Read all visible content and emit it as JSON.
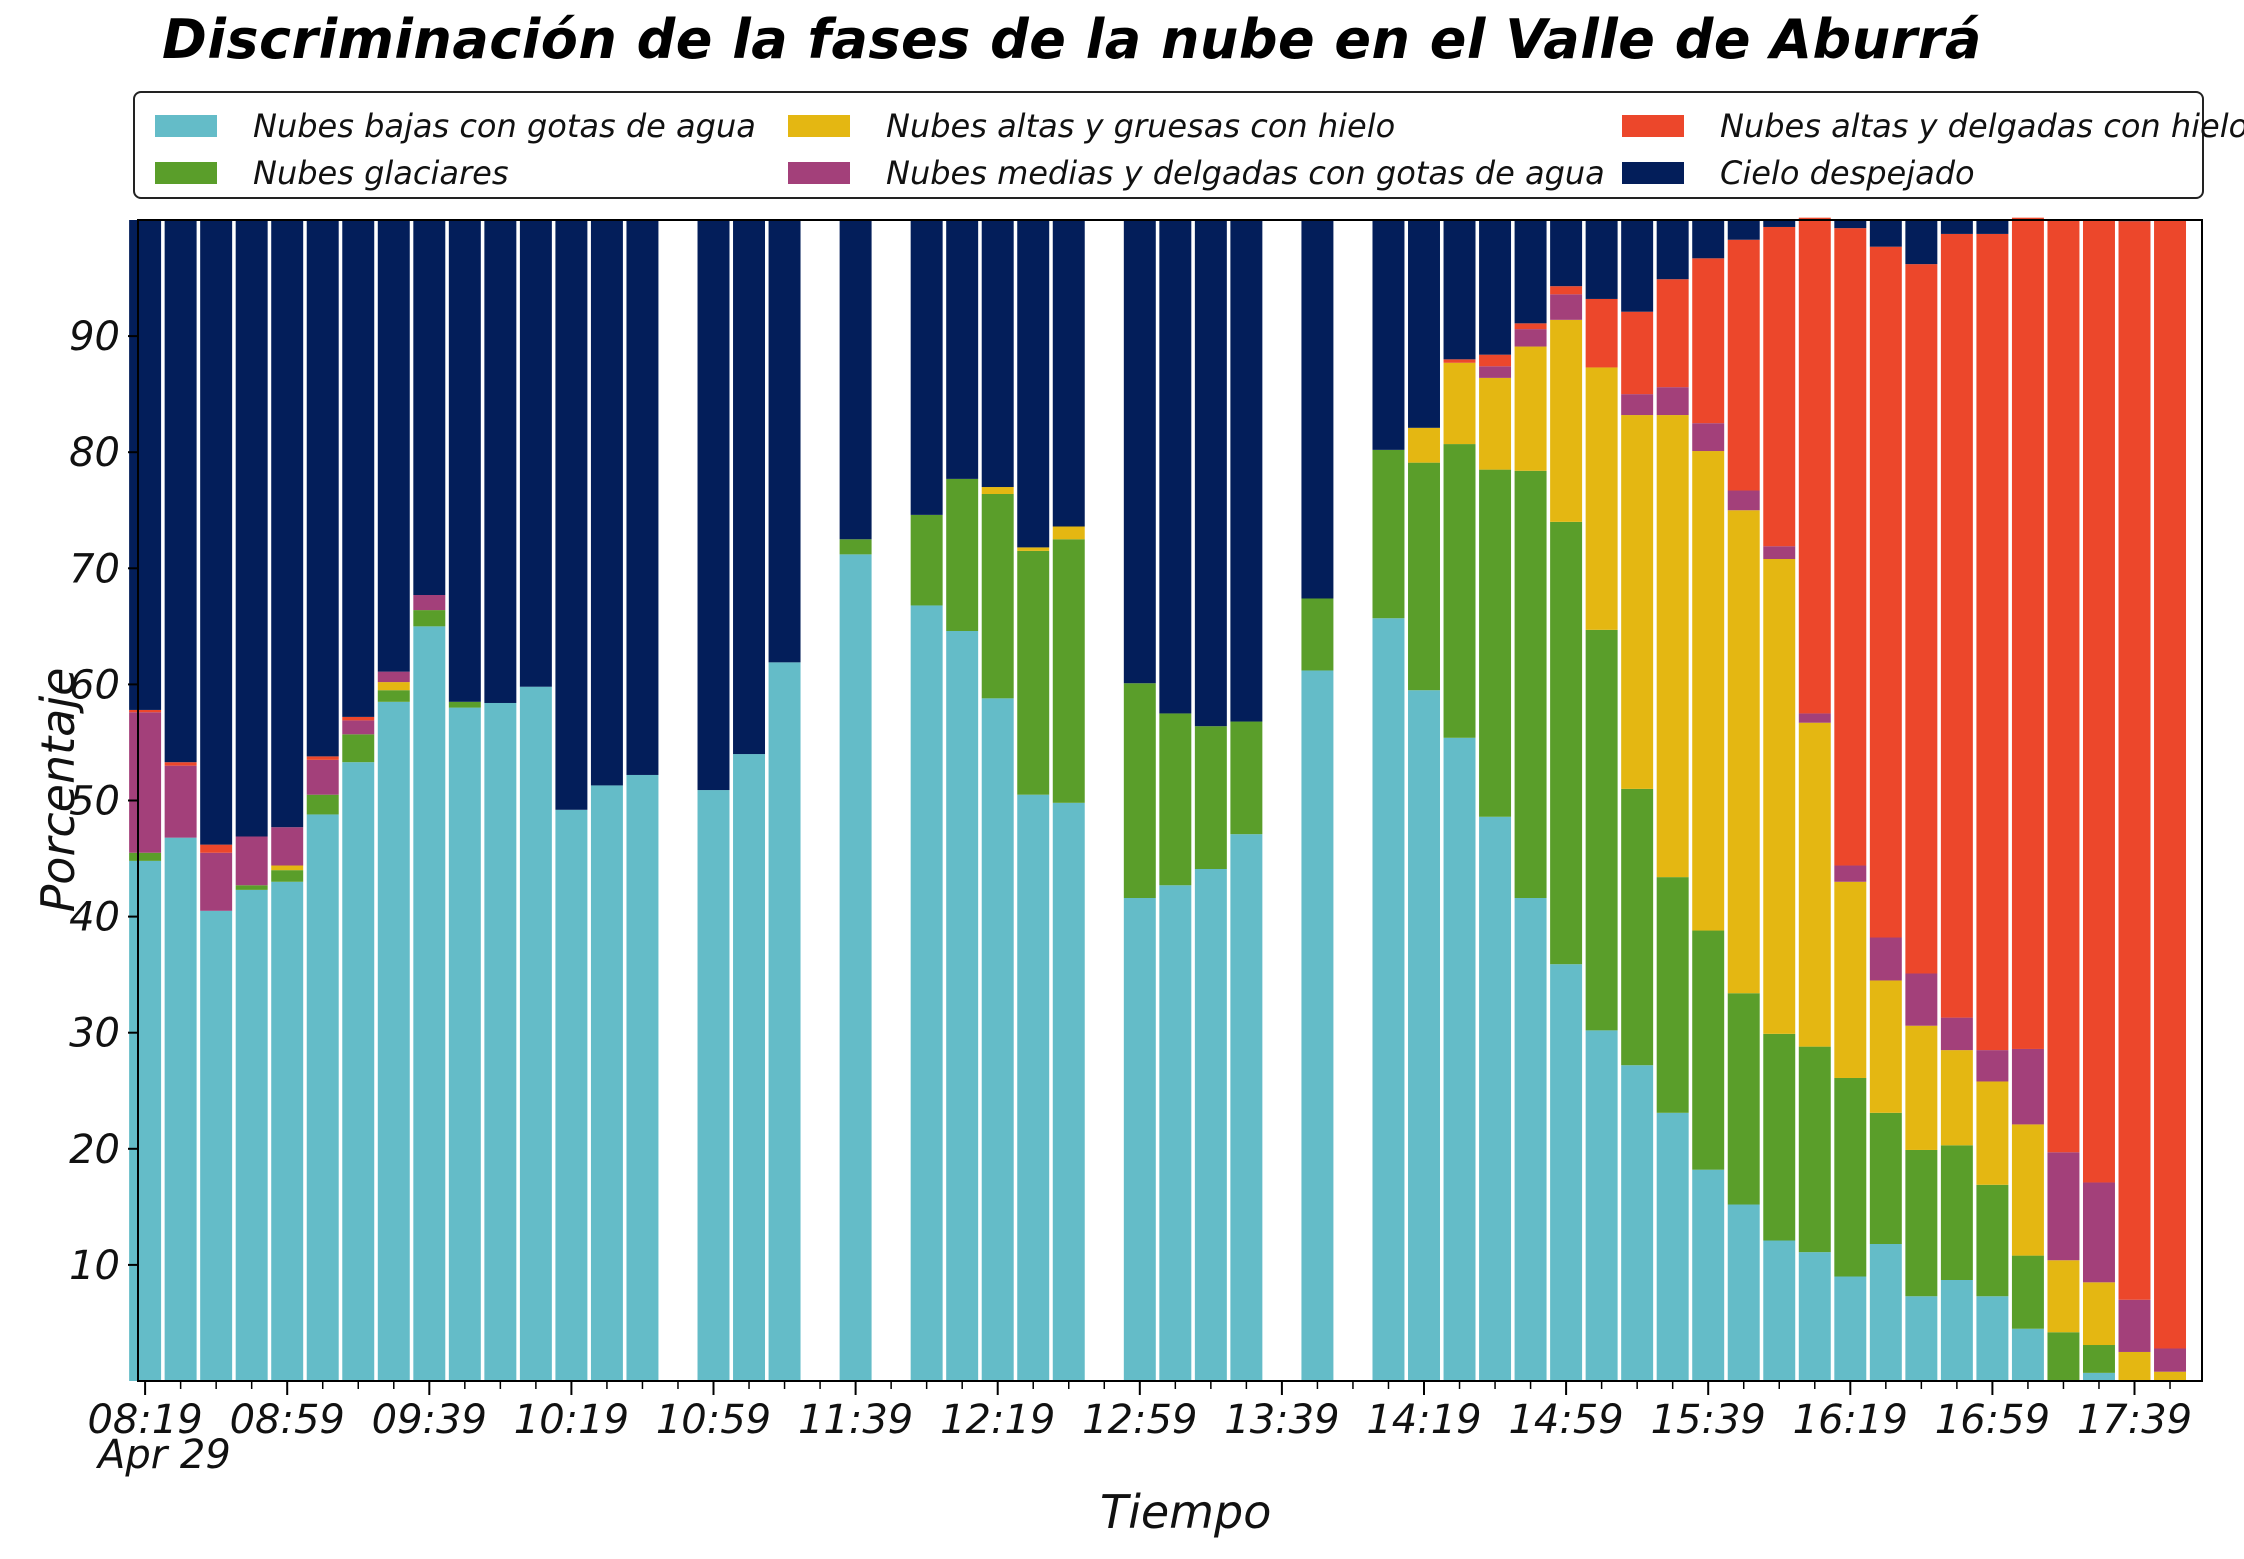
{
  "chart_data": {
    "type": "bar",
    "stacked": true,
    "title": "Discriminación de la fases de la nube en el Valle de Aburrá",
    "xlabel": "Tiempo",
    "ylabel": "Porcentaje",
    "date_label": "Apr 29",
    "ylim": [
      0,
      100
    ],
    "yticks": [
      10,
      20,
      30,
      40,
      50,
      60,
      70,
      80,
      90
    ],
    "xlim_minutes": [
      497,
      1078
    ],
    "xtick_minutes": [
      499,
      539,
      579,
      619,
      659,
      699,
      739,
      779,
      819,
      859,
      899,
      939,
      979,
      1019,
      1059
    ],
    "xtick_labels": [
      "08:19",
      "08:59",
      "09:39",
      "10:19",
      "10:59",
      "11:39",
      "12:19",
      "12:59",
      "13:39",
      "14:19",
      "14:59",
      "15:39",
      "16:19",
      "16:59",
      "17:39"
    ],
    "legend_position": "top",
    "colors": {
      "bajas": "#64bcc8",
      "glaciares": "#5a9e2a",
      "altas_gruesas": "#e4b712",
      "medias": "#a3407a",
      "altas_delgadas": "#ec472b",
      "despejado": "#031e5a"
    },
    "legend": [
      {
        "key": "bajas",
        "label": "Nubes bajas con gotas de agua"
      },
      {
        "key": "altas_gruesas",
        "label": "Nubes altas y gruesas con hielo"
      },
      {
        "key": "altas_delgadas",
        "label": "Nubes altas y delgadas con hielo"
      },
      {
        "key": "glaciares",
        "label": "Nubes glaciares"
      },
      {
        "key": "medias",
        "label": "Nubes medias y delgadas con gotas de agua"
      },
      {
        "key": "despejado",
        "label": "Cielo despejado"
      }
    ],
    "series_order": [
      "bajas",
      "glaciares",
      "altas_gruesas",
      "medias",
      "altas_delgadas",
      "despejado"
    ],
    "bars": [
      {
        "time": "08:19",
        "bajas": 44.8,
        "glaciares": 0.7,
        "altas_gruesas": 0,
        "medias": 12.1,
        "altas_delgadas": 0.2
      },
      {
        "time": "08:29",
        "bajas": 46.8,
        "glaciares": 0,
        "altas_gruesas": 0,
        "medias": 6.2,
        "altas_delgadas": 0.3
      },
      {
        "time": "08:39",
        "bajas": 40.5,
        "glaciares": 0,
        "altas_gruesas": 0,
        "medias": 5.0,
        "altas_delgadas": 0.7
      },
      {
        "time": "08:49",
        "bajas": 42.3,
        "glaciares": 0.4,
        "altas_gruesas": 0,
        "medias": 4.2,
        "altas_delgadas": 0
      },
      {
        "time": "08:59",
        "bajas": 43.0,
        "glaciares": 1.0,
        "altas_gruesas": 0.4,
        "medias": 3.3,
        "altas_delgadas": 0
      },
      {
        "time": "09:09",
        "bajas": 48.8,
        "glaciares": 1.7,
        "altas_gruesas": 0,
        "medias": 3.0,
        "altas_delgadas": 0.3
      },
      {
        "time": "09:19",
        "bajas": 53.3,
        "glaciares": 2.4,
        "altas_gruesas": 0,
        "medias": 1.2,
        "altas_delgadas": 0.3
      },
      {
        "time": "09:29",
        "bajas": 58.5,
        "glaciares": 1.0,
        "altas_gruesas": 0.7,
        "medias": 0.9,
        "altas_delgadas": 0
      },
      {
        "time": "09:39",
        "bajas": 65.0,
        "glaciares": 1.4,
        "altas_gruesas": 0,
        "medias": 1.3,
        "altas_delgadas": 0
      },
      {
        "time": "09:49",
        "bajas": 58.0,
        "glaciares": 0.5,
        "altas_gruesas": 0,
        "medias": 0,
        "altas_delgadas": 0
      },
      {
        "time": "09:59",
        "bajas": 58.4,
        "glaciares": 0,
        "altas_gruesas": 0,
        "medias": 0,
        "altas_delgadas": 0
      },
      {
        "time": "10:09",
        "bajas": 59.8,
        "glaciares": 0,
        "altas_gruesas": 0,
        "medias": 0,
        "altas_delgadas": 0
      },
      {
        "time": "10:19",
        "bajas": 49.2,
        "glaciares": 0,
        "altas_gruesas": 0,
        "medias": 0,
        "altas_delgadas": 0
      },
      {
        "time": "10:29",
        "bajas": 51.3,
        "glaciares": 0,
        "altas_gruesas": 0,
        "medias": 0,
        "altas_delgadas": 0
      },
      {
        "time": "10:39",
        "bajas": 52.2,
        "glaciares": 0,
        "altas_gruesas": 0,
        "medias": 0,
        "altas_delgadas": 0
      },
      {
        "time": "10:59",
        "bajas": 50.9,
        "glaciares": 0,
        "altas_gruesas": 0,
        "medias": 0,
        "altas_delgadas": 0
      },
      {
        "time": "11:09",
        "bajas": 54.0,
        "glaciares": 0,
        "altas_gruesas": 0,
        "medias": 0,
        "altas_delgadas": 0
      },
      {
        "time": "11:19",
        "bajas": 61.9,
        "glaciares": 0,
        "altas_gruesas": 0,
        "medias": 0,
        "altas_delgadas": 0
      },
      {
        "time": "11:39",
        "bajas": 71.2,
        "glaciares": 1.3,
        "altas_gruesas": 0,
        "medias": 0,
        "altas_delgadas": 0
      },
      {
        "time": "11:59",
        "bajas": 66.8,
        "glaciares": 7.8,
        "altas_gruesas": 0,
        "medias": 0,
        "altas_delgadas": 0
      },
      {
        "time": "12:09",
        "bajas": 64.6,
        "glaciares": 13.1,
        "altas_gruesas": 0,
        "medias": 0,
        "altas_delgadas": 0
      },
      {
        "time": "12:19",
        "bajas": 58.8,
        "glaciares": 17.6,
        "altas_gruesas": 0.6,
        "medias": 0,
        "altas_delgadas": 0
      },
      {
        "time": "12:29",
        "bajas": 50.5,
        "glaciares": 21.0,
        "altas_gruesas": 0.3,
        "medias": 0,
        "altas_delgadas": 0
      },
      {
        "time": "12:39",
        "bajas": 49.8,
        "glaciares": 22.7,
        "altas_gruesas": 1.1,
        "medias": 0,
        "altas_delgadas": 0
      },
      {
        "time": "12:59",
        "bajas": 41.6,
        "glaciares": 18.5,
        "altas_gruesas": 0,
        "medias": 0,
        "altas_delgadas": 0
      },
      {
        "time": "13:09",
        "bajas": 42.7,
        "glaciares": 14.8,
        "altas_gruesas": 0,
        "medias": 0,
        "altas_delgadas": 0
      },
      {
        "time": "13:19",
        "bajas": 44.1,
        "glaciares": 12.3,
        "altas_gruesas": 0,
        "medias": 0,
        "altas_delgadas": 0
      },
      {
        "time": "13:29",
        "bajas": 47.1,
        "glaciares": 9.7,
        "altas_gruesas": 0,
        "medias": 0,
        "altas_delgadas": 0
      },
      {
        "time": "13:49",
        "bajas": 61.2,
        "glaciares": 6.2,
        "altas_gruesas": 0,
        "medias": 0,
        "altas_delgadas": 0
      },
      {
        "time": "14:09",
        "bajas": 65.7,
        "glaciares": 14.5,
        "altas_gruesas": 0,
        "medias": 0,
        "altas_delgadas": 0
      },
      {
        "time": "14:19",
        "bajas": 59.5,
        "glaciares": 19.6,
        "altas_gruesas": 3.0,
        "medias": 0,
        "altas_delgadas": 0
      },
      {
        "time": "14:29",
        "bajas": 55.4,
        "glaciares": 25.3,
        "altas_gruesas": 7.0,
        "medias": 0,
        "altas_delgadas": 0.3
      },
      {
        "time": "14:39",
        "bajas": 48.6,
        "glaciares": 29.9,
        "altas_gruesas": 7.9,
        "medias": 1.0,
        "altas_delgadas": 1.0
      },
      {
        "time": "14:49",
        "bajas": 41.6,
        "glaciares": 36.8,
        "altas_gruesas": 10.7,
        "medias": 1.5,
        "altas_delgadas": 0.5
      },
      {
        "time": "14:59",
        "bajas": 35.9,
        "glaciares": 38.1,
        "altas_gruesas": 17.4,
        "medias": 2.2,
        "altas_delgadas": 0.7
      },
      {
        "time": "15:09",
        "bajas": 30.2,
        "glaciares": 34.5,
        "altas_gruesas": 22.6,
        "medias": 0,
        "altas_delgadas": 5.9
      },
      {
        "time": "15:19",
        "bajas": 27.2,
        "glaciares": 23.8,
        "altas_gruesas": 32.2,
        "medias": 1.8,
        "altas_delgadas": 7.1
      },
      {
        "time": "15:29",
        "bajas": 23.1,
        "glaciares": 20.3,
        "altas_gruesas": 39.8,
        "medias": 2.4,
        "altas_delgadas": 9.3
      },
      {
        "time": "15:39",
        "bajas": 18.2,
        "glaciares": 20.6,
        "altas_gruesas": 41.3,
        "medias": 2.4,
        "altas_delgadas": 14.2
      },
      {
        "time": "15:49",
        "bajas": 15.2,
        "glaciares": 18.2,
        "altas_gruesas": 41.6,
        "medias": 1.7,
        "altas_delgadas": 21.6
      },
      {
        "time": "15:59",
        "bajas": 12.1,
        "glaciares": 17.8,
        "altas_gruesas": 40.9,
        "medias": 1.1,
        "altas_delgadas": 27.5
      },
      {
        "time": "16:09",
        "bajas": 11.1,
        "glaciares": 17.7,
        "altas_gruesas": 27.9,
        "medias": 0.8,
        "altas_delgadas": 42.7
      },
      {
        "time": "16:19",
        "bajas": 9.0,
        "glaciares": 17.1,
        "altas_gruesas": 16.9,
        "medias": 1.4,
        "altas_delgadas": 54.9
      },
      {
        "time": "16:29",
        "bajas": 11.8,
        "glaciares": 11.3,
        "altas_gruesas": 11.4,
        "medias": 3.7,
        "altas_delgadas": 59.5
      },
      {
        "time": "16:39",
        "bajas": 7.3,
        "glaciares": 12.6,
        "altas_gruesas": 10.7,
        "medias": 4.5,
        "altas_delgadas": 61.1
      },
      {
        "time": "16:49",
        "bajas": 8.7,
        "glaciares": 11.6,
        "altas_gruesas": 8.2,
        "medias": 2.8,
        "altas_delgadas": 67.5
      },
      {
        "time": "16:59",
        "bajas": 7.3,
        "glaciares": 9.6,
        "altas_gruesas": 8.9,
        "medias": 2.7,
        "altas_delgadas": 70.3
      },
      {
        "time": "17:09",
        "bajas": 4.5,
        "glaciares": 6.3,
        "altas_gruesas": 11.3,
        "medias": 6.5,
        "altas_delgadas": 71.6
      },
      {
        "time": "17:19",
        "bajas": 0,
        "glaciares": 4.2,
        "altas_gruesas": 6.2,
        "medias": 9.3,
        "altas_delgadas": 80.3
      },
      {
        "time": "17:29",
        "bajas": 0.7,
        "glaciares": 2.4,
        "altas_gruesas": 5.4,
        "medias": 8.6,
        "altas_delgadas": 82.9
      },
      {
        "time": "17:39",
        "bajas": 0,
        "glaciares": 0,
        "altas_gruesas": 2.5,
        "medias": 4.5,
        "altas_delgadas": 92.9
      },
      {
        "time": "17:49",
        "bajas": 0,
        "glaciares": 0,
        "altas_gruesas": 0.8,
        "medias": 2.0,
        "altas_delgadas": 97.2
      }
    ]
  }
}
